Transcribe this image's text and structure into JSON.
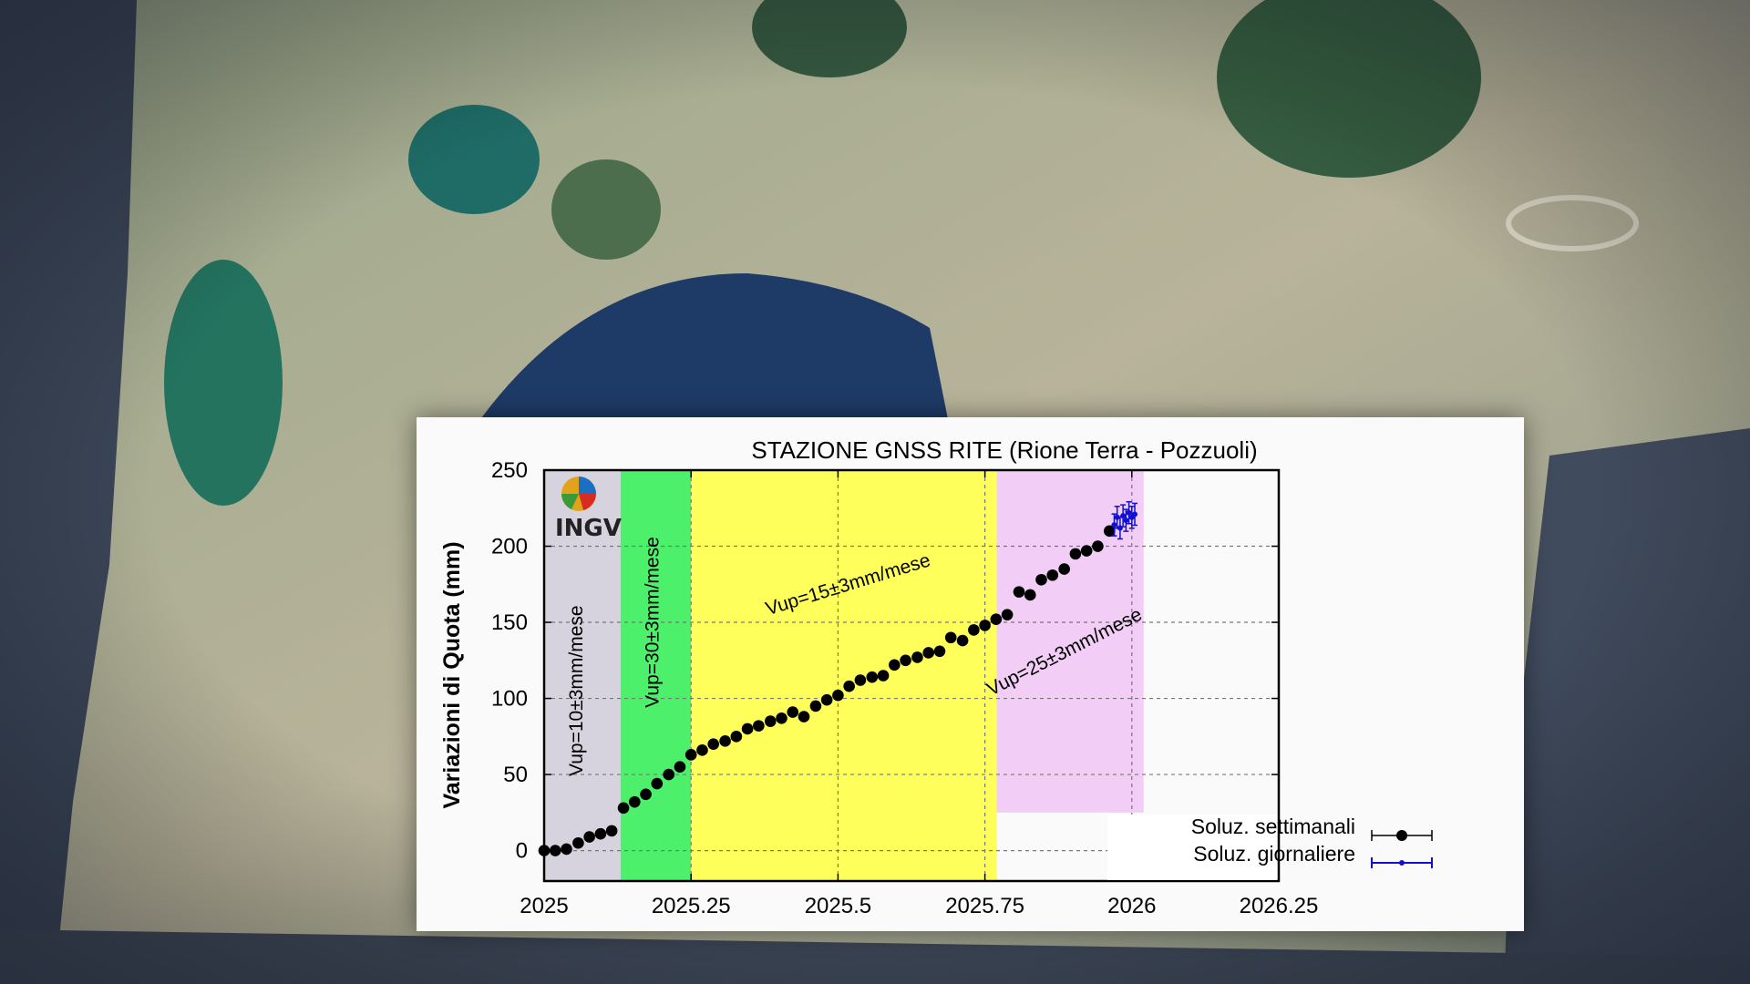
{
  "logo": {
    "text": "INGV"
  },
  "colors": {
    "band_1": "#d6d3df",
    "band_2": "#4df06a",
    "band_3": "#ffff5c",
    "band_4": "#f2cdf6",
    "weekly": "#000000",
    "daily": "#1010d0"
  },
  "chart_data": {
    "type": "scatter",
    "title": "STAZIONE GNSS RITE (Rione Terra - Pozzuoli)",
    "xlabel": "",
    "ylabel": "Variazioni di Quota (mm)",
    "xlim": [
      2025,
      2026.25
    ],
    "ylim": [
      -20,
      250
    ],
    "xticks": [
      2025,
      2025.25,
      2025.5,
      2025.75,
      2026,
      2026.25
    ],
    "xtick_labels": [
      "2025",
      "2025.25",
      "2025.5",
      "2025.75",
      "2026",
      "2026.25"
    ],
    "yticks": [
      0,
      50,
      100,
      150,
      200,
      250
    ],
    "ytick_labels": [
      "0",
      "50",
      "100",
      "150",
      "200",
      "250"
    ],
    "grid": true,
    "legend_position": "bottom-right",
    "bands": [
      {
        "x0": 2025.0,
        "x1": 2025.13,
        "y0": -20,
        "y1": 250,
        "color": "#d6d3df",
        "label": "Vup=10±3mm/mese"
      },
      {
        "x0": 2025.13,
        "x1": 2025.25,
        "y0": -20,
        "y1": 250,
        "color": "#4df06a",
        "label": "Vup=30±3mm/mese"
      },
      {
        "x0": 2025.25,
        "x1": 2025.77,
        "y0": -20,
        "y1": 250,
        "color": "#ffff5c",
        "label": "Vup=15±3mm/mese"
      },
      {
        "x0": 2025.77,
        "x1": 2026.02,
        "y0": 25,
        "y1": 250,
        "color": "#f2cdf6",
        "label": "Vup=25±3mm/mese"
      }
    ],
    "series": [
      {
        "name": "Soluz. settimanali",
        "x": [
          2025.0,
          2025.019,
          2025.038,
          2025.058,
          2025.077,
          2025.096,
          2025.115,
          2025.135,
          2025.154,
          2025.173,
          2025.192,
          2025.212,
          2025.231,
          2025.25,
          2025.269,
          2025.288,
          2025.308,
          2025.327,
          2025.346,
          2025.365,
          2025.385,
          2025.404,
          2025.423,
          2025.442,
          2025.462,
          2025.481,
          2025.5,
          2025.519,
          2025.538,
          2025.558,
          2025.577,
          2025.596,
          2025.615,
          2025.635,
          2025.654,
          2025.673,
          2025.692,
          2025.712,
          2025.731,
          2025.75,
          2025.769,
          2025.788,
          2025.808,
          2025.827,
          2025.846,
          2025.865,
          2025.885,
          2025.904,
          2025.923,
          2025.942,
          2025.962
        ],
        "values": [
          0,
          0,
          1,
          5,
          9,
          11,
          13,
          28,
          32,
          37,
          44,
          50,
          55,
          63,
          66,
          70,
          72,
          75,
          80,
          82,
          85,
          87,
          91,
          88,
          95,
          99,
          102,
          108,
          112,
          114,
          115,
          122,
          125,
          127,
          130,
          131,
          140,
          138,
          145,
          148,
          152,
          155,
          170,
          168,
          178,
          181,
          185,
          195,
          197,
          200,
          210
        ]
      },
      {
        "name": "Soluz. giornaliere",
        "x": [
          2025.97,
          2025.975,
          2025.98,
          2025.985,
          2025.99,
          2025.995,
          2026.0,
          2026.005
        ],
        "values": [
          214,
          219,
          212,
          220,
          217,
          222,
          219,
          221
        ]
      }
    ]
  }
}
